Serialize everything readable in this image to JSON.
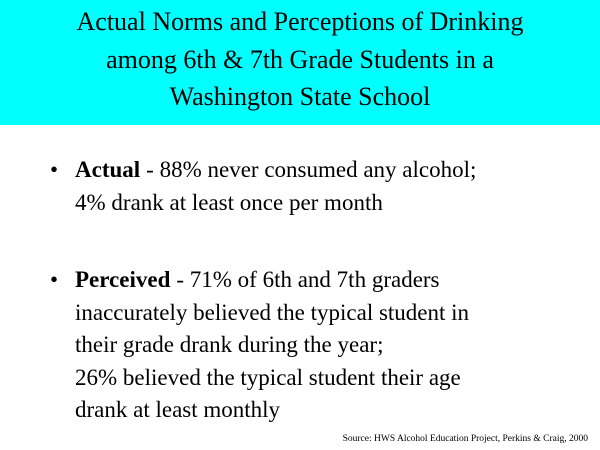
{
  "header": {
    "title_lines": [
      "Actual Norms and Perceptions of Drinking",
      "among 6th & 7th Grade Students in a",
      "Washington State School"
    ]
  },
  "bullets": [
    {
      "label": "Actual",
      "lines": [
        "- 88% never consumed any alcohol;",
        "4% drank at least once per month"
      ]
    },
    {
      "label": "Perceived",
      "lines": [
        "- 71% of 6th and 7th graders",
        "inaccurately believed the typical student in",
        "their grade drank during the year;",
        "26% believed the typical student their age",
        "drank at least monthly"
      ]
    }
  ],
  "source": "Source:  HWS Alcohol Education Project, Perkins & Craig, 2000"
}
